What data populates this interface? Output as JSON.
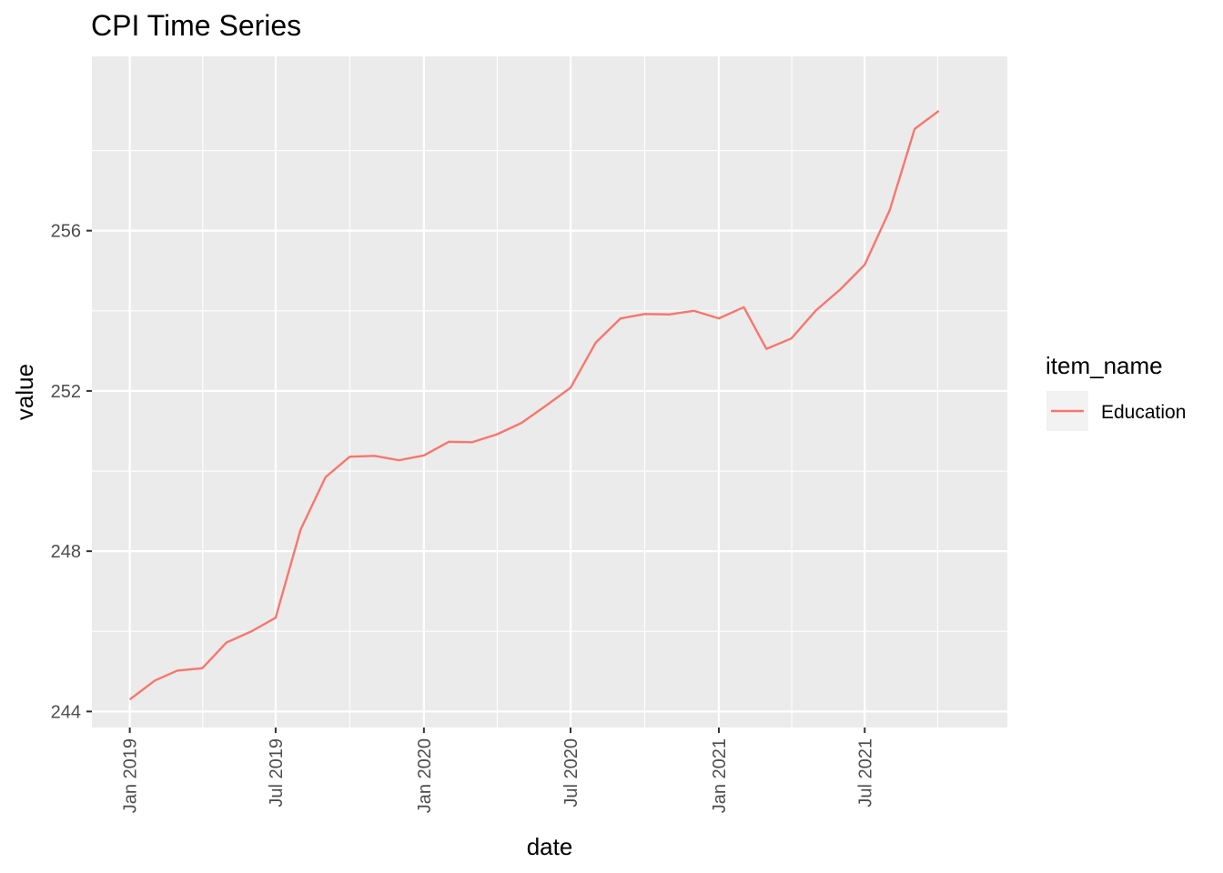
{
  "chart_data": {
    "type": "line",
    "title": "CPI Time Series",
    "xlabel": "date",
    "ylabel": "value",
    "x_ticks": [
      {
        "date": "2019-01-01",
        "label": "Jan 2019"
      },
      {
        "date": "2019-07-01",
        "label": "Jul 2019"
      },
      {
        "date": "2020-01-01",
        "label": "Jan 2020"
      },
      {
        "date": "2020-07-01",
        "label": "Jul 2020"
      },
      {
        "date": "2021-01-01",
        "label": "Jan 2021"
      },
      {
        "date": "2021-07-01",
        "label": "Jul 2021"
      }
    ],
    "y_ticks": [
      244,
      248,
      252,
      256
    ],
    "xlim": [
      "2018-11-15",
      "2021-12-25"
    ],
    "ylim": [
      243.6,
      260.35
    ],
    "grid": true,
    "legend": {
      "title": "item_name",
      "placement": "right"
    },
    "series": [
      {
        "name": "Education",
        "color": "#F8766D",
        "x": [
          "2019-01-01",
          "2019-02-01",
          "2019-03-01",
          "2019-04-01",
          "2019-05-01",
          "2019-06-01",
          "2019-07-01",
          "2019-08-01",
          "2019-09-01",
          "2019-10-01",
          "2019-11-01",
          "2019-12-01",
          "2020-01-01",
          "2020-02-01",
          "2020-03-01",
          "2020-04-01",
          "2020-05-01",
          "2020-06-01",
          "2020-07-01",
          "2020-08-01",
          "2020-09-01",
          "2020-10-01",
          "2020-11-01",
          "2020-12-01",
          "2021-01-01",
          "2021-02-01",
          "2021-03-01",
          "2021-04-01",
          "2021-05-01",
          "2021-06-01",
          "2021-07-01",
          "2021-08-01",
          "2021-09-01",
          "2021-10-01"
        ],
        "values": [
          244.3,
          244.77,
          245.02,
          245.08,
          245.72,
          246.0,
          246.34,
          248.54,
          249.85,
          250.36,
          250.38,
          250.27,
          250.39,
          250.73,
          250.72,
          250.92,
          251.2,
          251.64,
          252.08,
          253.2,
          253.81,
          253.92,
          253.91,
          254.0,
          253.81,
          254.09,
          253.05,
          253.31,
          254.0,
          254.54,
          255.15,
          256.51,
          258.54,
          258.99
        ]
      }
    ]
  }
}
